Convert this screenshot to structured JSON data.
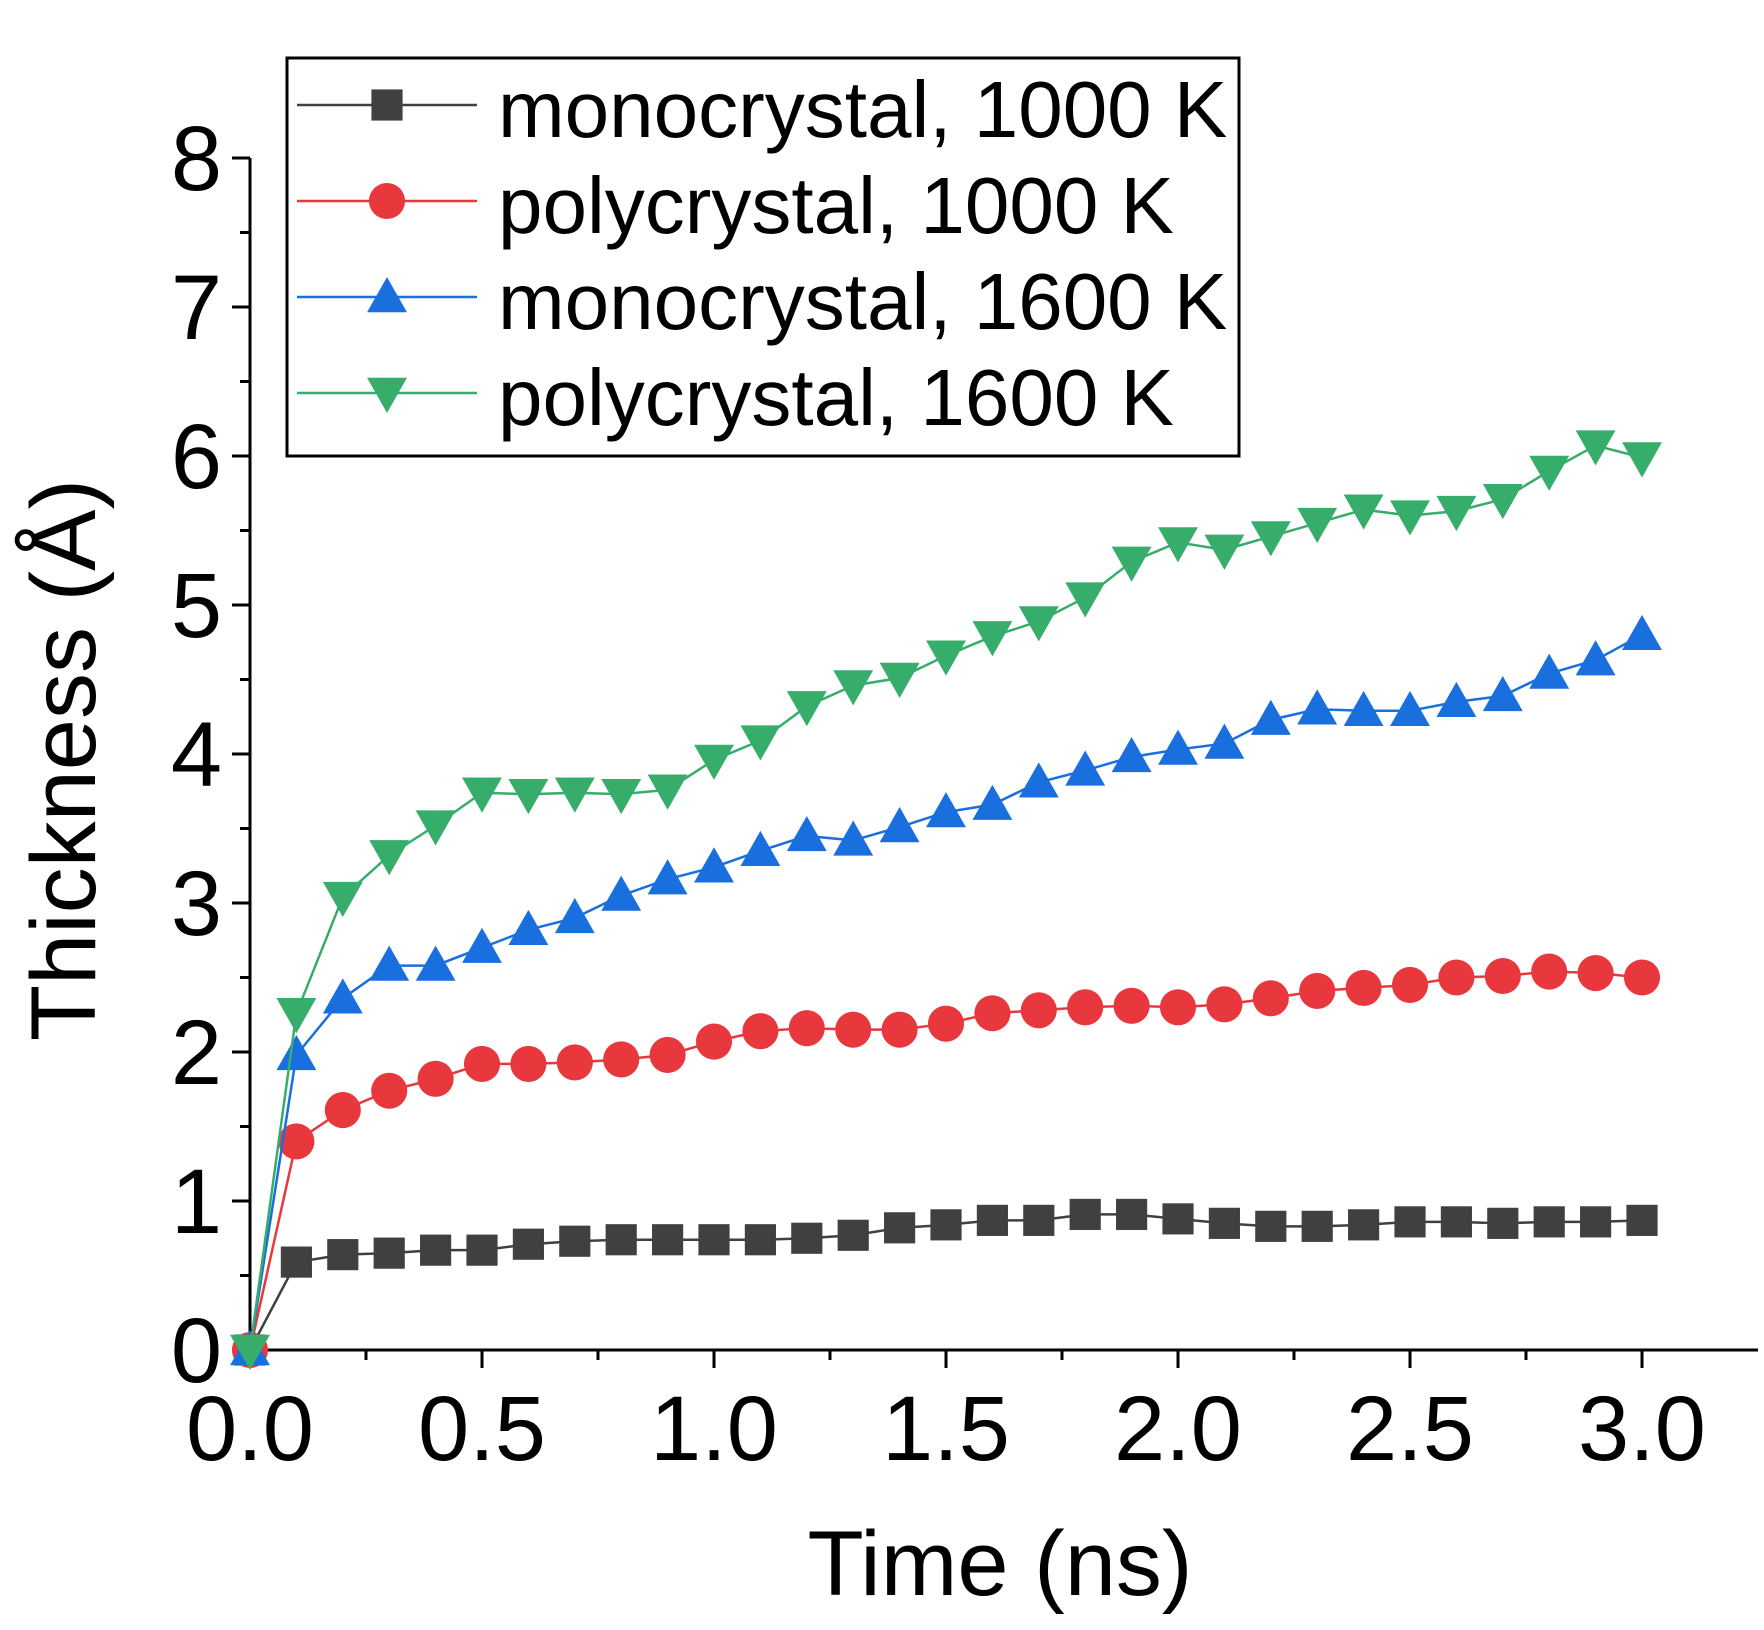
{
  "chart_data": {
    "type": "line",
    "title": "",
    "xlabel": "Time (ns)",
    "ylabel": "Thickness (Å)",
    "xlim": [
      0,
      3.25
    ],
    "ylim": [
      0,
      8
    ],
    "xticks": [
      "0.0",
      "0.5",
      "1.0",
      "1.5",
      "2.0",
      "2.5",
      "3.0"
    ],
    "yticks": [
      "0",
      "1",
      "2",
      "3",
      "4",
      "5",
      "6",
      "7",
      "8"
    ],
    "legend_position": "top-left",
    "x": [
      0.0,
      0.1,
      0.2,
      0.3,
      0.4,
      0.5,
      0.6,
      0.7,
      0.8,
      0.9,
      1.0,
      1.1,
      1.2,
      1.3,
      1.4,
      1.5,
      1.6,
      1.7,
      1.8,
      1.9,
      2.0,
      2.1,
      2.2,
      2.3,
      2.4,
      2.5,
      2.6,
      2.7,
      2.8,
      2.9,
      3.0
    ],
    "series": [
      {
        "name": "monocrystal, 1000 K",
        "color": "#404040",
        "marker": "square",
        "values": [
          0.0,
          0.59,
          0.64,
          0.65,
          0.67,
          0.67,
          0.71,
          0.73,
          0.74,
          0.74,
          0.74,
          0.74,
          0.75,
          0.77,
          0.82,
          0.84,
          0.87,
          0.87,
          0.91,
          0.91,
          0.88,
          0.85,
          0.83,
          0.83,
          0.84,
          0.86,
          0.86,
          0.85,
          0.86,
          0.86,
          0.87
        ]
      },
      {
        "name": "polycrystal, 1000 K",
        "color": "#e8383d",
        "marker": "circle",
        "values": [
          0.0,
          1.4,
          1.61,
          1.74,
          1.82,
          1.92,
          1.92,
          1.93,
          1.95,
          1.98,
          2.07,
          2.14,
          2.16,
          2.15,
          2.15,
          2.19,
          2.26,
          2.28,
          2.3,
          2.31,
          2.3,
          2.32,
          2.36,
          2.41,
          2.43,
          2.45,
          2.5,
          2.51,
          2.54,
          2.53,
          2.5
        ]
      },
      {
        "name": "monocrystal, 1600 K",
        "color": "#1a6fdf",
        "marker": "triangle-up",
        "values": [
          0.0,
          1.98,
          2.36,
          2.58,
          2.58,
          2.7,
          2.82,
          2.9,
          3.05,
          3.16,
          3.24,
          3.35,
          3.45,
          3.42,
          3.51,
          3.61,
          3.66,
          3.81,
          3.89,
          3.98,
          4.03,
          4.07,
          4.23,
          4.3,
          4.29,
          4.29,
          4.35,
          4.39,
          4.54,
          4.63,
          4.8
        ]
      },
      {
        "name": "polycrystal, 1600 K",
        "color": "#37ad6b",
        "marker": "triangle-down",
        "values": [
          0.0,
          2.26,
          3.04,
          3.32,
          3.52,
          3.74,
          3.73,
          3.74,
          3.73,
          3.76,
          3.96,
          4.09,
          4.32,
          4.46,
          4.51,
          4.66,
          4.79,
          4.89,
          5.05,
          5.29,
          5.42,
          5.37,
          5.46,
          5.55,
          5.64,
          5.6,
          5.63,
          5.71,
          5.9,
          6.07,
          5.99
        ]
      }
    ]
  }
}
